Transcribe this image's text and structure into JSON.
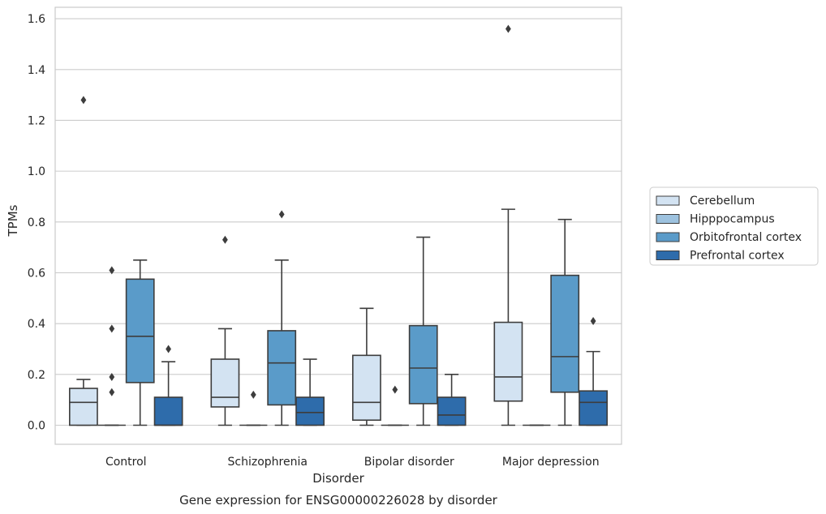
{
  "chart_data": {
    "type": "box",
    "title": "",
    "caption": "Gene expression for ENSG00000226028 by disorder",
    "xlabel": "Disorder",
    "ylabel": "TPMs",
    "ylim": [
      -0.075,
      1.645
    ],
    "yticks": [
      "0.0",
      "0.2",
      "0.4",
      "0.6",
      "0.8",
      "1.0",
      "1.2",
      "1.4",
      "1.6"
    ],
    "categories": [
      "Control",
      "Schizophrenia",
      "Bipolar disorder",
      "Major depression"
    ],
    "grid": "horizontal",
    "legend_position": "right",
    "series": [
      {
        "name": "Cerebellum",
        "color": "#d3e3f2",
        "boxes": [
          {
            "whisker_low": 0.0,
            "q1": 0.0,
            "median": 0.09,
            "q3": 0.145,
            "whisker_high": 0.18,
            "outliers": [
              1.28
            ]
          },
          {
            "whisker_low": 0.0,
            "q1": 0.072,
            "median": 0.11,
            "q3": 0.26,
            "whisker_high": 0.38,
            "outliers": [
              0.73
            ]
          },
          {
            "whisker_low": 0.0,
            "q1": 0.02,
            "median": 0.09,
            "q3": 0.275,
            "whisker_high": 0.46,
            "outliers": []
          },
          {
            "whisker_low": 0.0,
            "q1": 0.095,
            "median": 0.19,
            "q3": 0.405,
            "whisker_high": 0.85,
            "outliers": [
              1.56
            ]
          }
        ]
      },
      {
        "name": "Hipppocampus",
        "color": "#9dc2df",
        "boxes": [
          {
            "whisker_low": 0.0,
            "q1": 0.0,
            "median": 0.0,
            "q3": 0.0,
            "whisker_high": 0.0,
            "outliers": [
              0.61,
              0.38,
              0.19,
              0.13
            ]
          },
          {
            "whisker_low": 0.0,
            "q1": 0.0,
            "median": 0.0,
            "q3": 0.0,
            "whisker_high": 0.0,
            "outliers": [
              0.12
            ]
          },
          {
            "whisker_low": 0.0,
            "q1": 0.0,
            "median": 0.0,
            "q3": 0.0,
            "whisker_high": 0.0,
            "outliers": [
              0.14
            ]
          },
          {
            "whisker_low": 0.0,
            "q1": 0.0,
            "median": 0.0,
            "q3": 0.0,
            "whisker_high": 0.0,
            "outliers": []
          }
        ]
      },
      {
        "name": "Orbitofrontal cortex",
        "color": "#5a9bc9",
        "boxes": [
          {
            "whisker_low": 0.0,
            "q1": 0.168,
            "median": 0.35,
            "q3": 0.575,
            "whisker_high": 0.65,
            "outliers": []
          },
          {
            "whisker_low": 0.0,
            "q1": 0.08,
            "median": 0.245,
            "q3": 0.372,
            "whisker_high": 0.65,
            "outliers": [
              0.83
            ]
          },
          {
            "whisker_low": 0.0,
            "q1": 0.085,
            "median": 0.225,
            "q3": 0.392,
            "whisker_high": 0.74,
            "outliers": []
          },
          {
            "whisker_low": 0.0,
            "q1": 0.13,
            "median": 0.27,
            "q3": 0.59,
            "whisker_high": 0.81,
            "outliers": []
          }
        ]
      },
      {
        "name": "Prefrontal cortex",
        "color": "#2e6cab",
        "boxes": [
          {
            "whisker_low": 0.0,
            "q1": 0.0,
            "median": 0.0,
            "q3": 0.11,
            "whisker_high": 0.25,
            "outliers": [
              0.3
            ]
          },
          {
            "whisker_low": 0.0,
            "q1": 0.0,
            "median": 0.05,
            "q3": 0.11,
            "whisker_high": 0.26,
            "outliers": []
          },
          {
            "whisker_low": 0.0,
            "q1": 0.0,
            "median": 0.04,
            "q3": 0.11,
            "whisker_high": 0.2,
            "outliers": []
          },
          {
            "whisker_low": 0.0,
            "q1": 0.0,
            "median": 0.09,
            "q3": 0.135,
            "whisker_high": 0.29,
            "outliers": [
              0.41
            ]
          }
        ]
      }
    ]
  }
}
